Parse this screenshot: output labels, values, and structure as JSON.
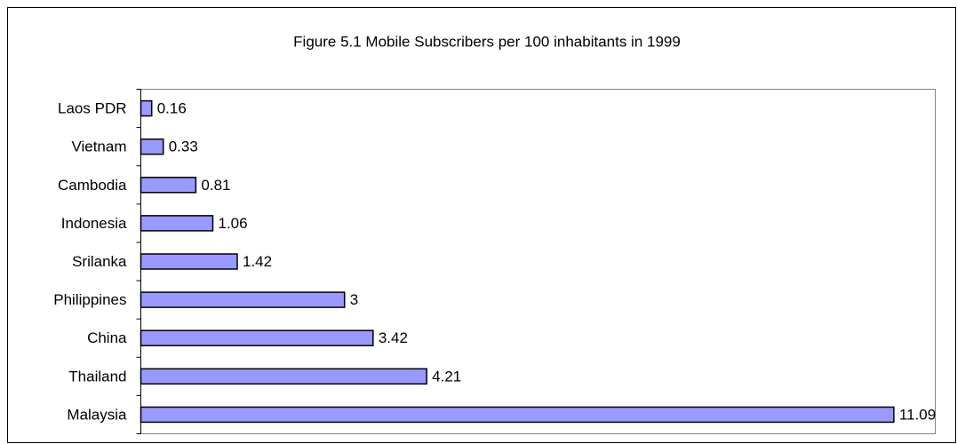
{
  "chart_data": {
    "type": "bar",
    "orientation": "horizontal",
    "title": "Figure 5.1 Mobile Subscribers per 100 inhabitants in 1999",
    "categories": [
      "Laos PDR",
      "Vietnam",
      "Cambodia",
      "Indonesia",
      "Srilanka",
      "Philippines",
      "China",
      "Thailand",
      "Malaysia"
    ],
    "values": [
      0.16,
      0.33,
      0.81,
      1.06,
      1.42,
      3,
      3.42,
      4.21,
      11.09
    ],
    "color": "#9999ff",
    "xlim": [
      0,
      11.7
    ]
  }
}
